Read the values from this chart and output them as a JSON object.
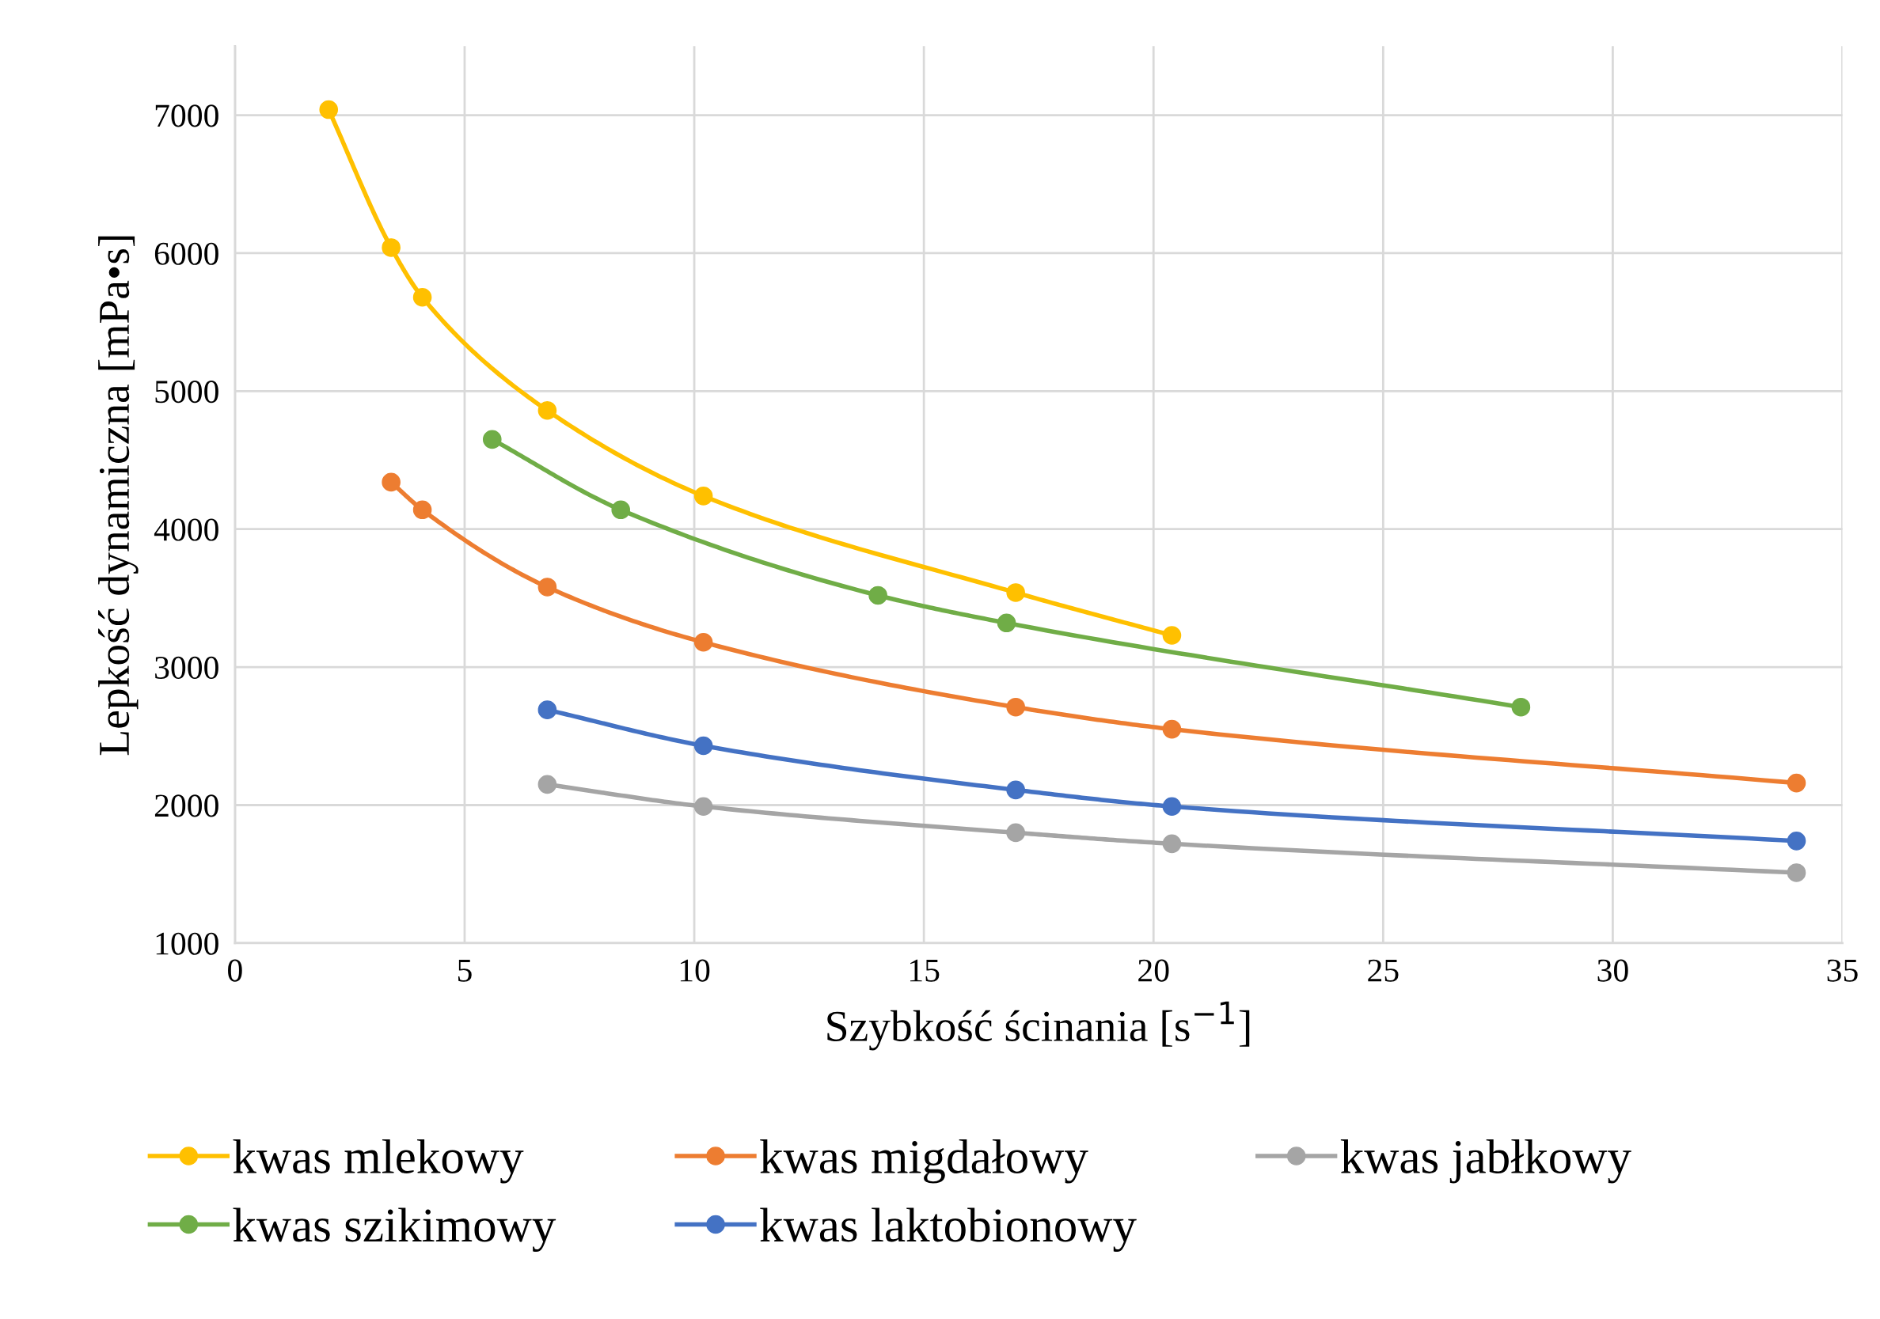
{
  "chart_data": {
    "type": "line",
    "xlabel": "Szybkość ścinania [s$^{−1}$]",
    "ylabel": "Lepkość dynamiczna [mPa•s]",
    "xlim": [
      0,
      35
    ],
    "xticks": [
      0,
      5,
      10,
      15,
      20,
      25,
      30,
      35
    ],
    "ylim": [
      1000,
      7500
    ],
    "yticks": [
      1000,
      2000,
      3000,
      4000,
      5000,
      6000,
      7000
    ],
    "grid": true,
    "legend": "bottom",
    "marker": "circle",
    "line_style": "solid",
    "series": [
      {
        "name": "kwas mlekowy",
        "color": "#ffc000",
        "x": [
          2.04,
          3.4,
          4.08,
          6.8,
          10.2,
          17,
          20.4
        ],
        "values": [
          7040,
          6040,
          5680,
          4860,
          4240,
          3540,
          3230
        ]
      },
      {
        "name": "kwas szikimowy",
        "color": "#70ad47",
        "x": [
          5.6,
          8.4,
          14,
          16.8,
          28
        ],
        "values": [
          4650,
          4140,
          3520,
          3320,
          2710
        ]
      },
      {
        "name": "kwas migdałowy",
        "color": "#ed7d31",
        "x": [
          3.4,
          4.08,
          6.8,
          10.2,
          17,
          20.4,
          34
        ],
        "values": [
          4340,
          4140,
          3580,
          3180,
          2710,
          2550,
          2160
        ]
      },
      {
        "name": "kwas laktobionowy",
        "color": "#4472c4",
        "x": [
          6.8,
          10.2,
          17,
          20.4,
          34
        ],
        "values": [
          2690,
          2430,
          2110,
          1990,
          1740
        ]
      },
      {
        "name": "kwas jabłkowy",
        "color": "#a5a5a5",
        "x": [
          6.8,
          10.2,
          17,
          20.4,
          34
        ],
        "values": [
          2150,
          1990,
          1800,
          1720,
          1510
        ]
      }
    ]
  }
}
